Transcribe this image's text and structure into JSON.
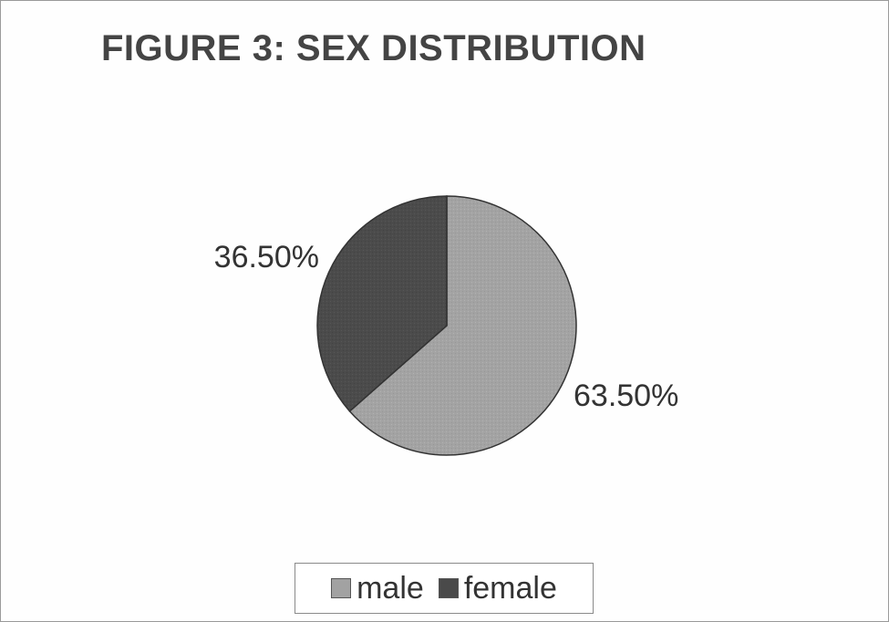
{
  "chart_data": {
    "type": "pie",
    "title": "FIGURE 3: SEX DISTRIBUTION",
    "categories": [
      "male",
      "female"
    ],
    "values": [
      63.5,
      36.5
    ],
    "data_labels": [
      "63.50%",
      "36.50%"
    ],
    "colors": [
      "#a2a2a2",
      "#4a4a4a"
    ],
    "legend_position": "bottom"
  }
}
